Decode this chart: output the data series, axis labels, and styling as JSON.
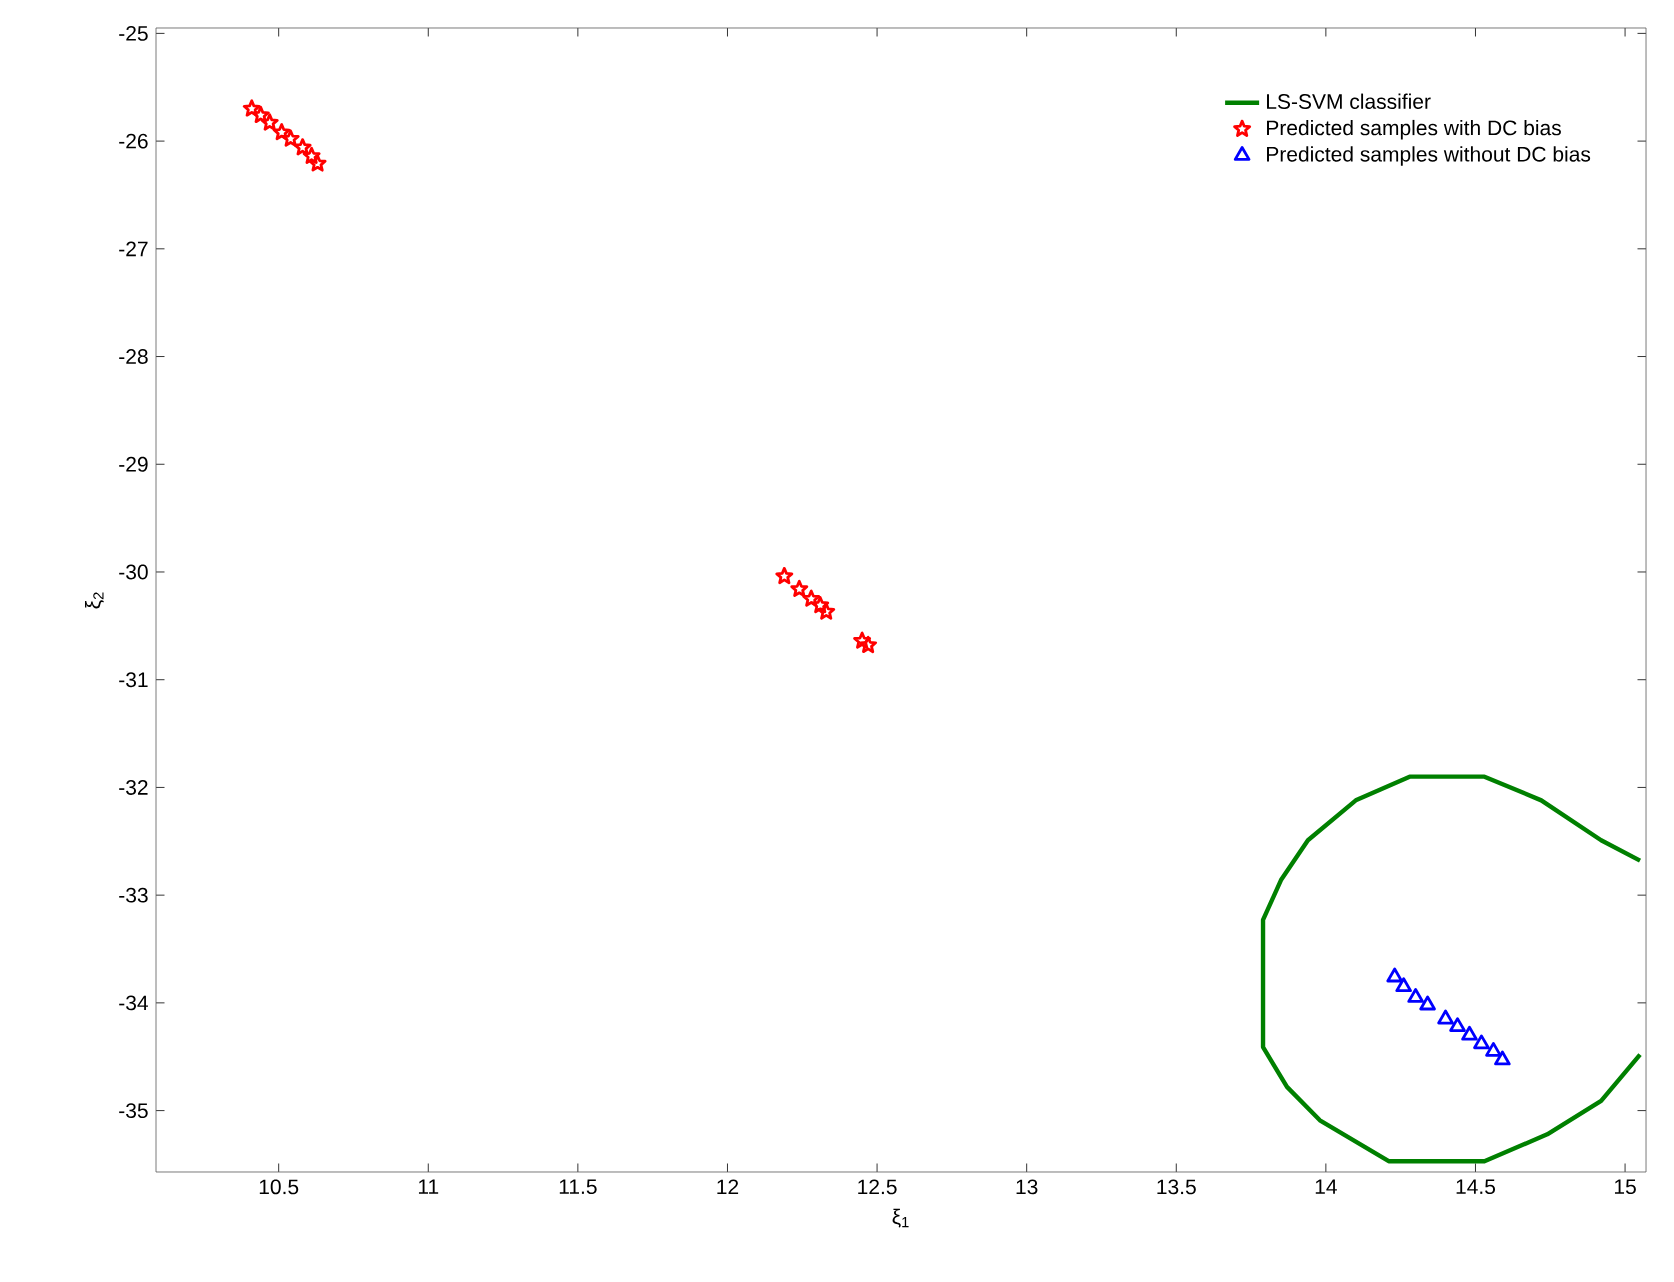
{
  "chart_data": {
    "type": "scatter",
    "xlabel": "ξ$_{1}$",
    "ylabel": "ξ$_{2}$",
    "xlim": [
      10.09,
      15.07
    ],
    "ylim": [
      -35.57,
      -24.95
    ],
    "xticks": [
      10.5,
      11,
      11.5,
      12,
      12.5,
      13,
      13.5,
      14,
      14.5,
      15
    ],
    "yticks": [
      -35,
      -34,
      -33,
      -32,
      -31,
      -30,
      -29,
      -28,
      -27,
      -26,
      -25
    ],
    "legend": "top right",
    "grid": false,
    "series": [
      {
        "name": "LS-SVM classifier",
        "type": "line",
        "color": "#008000",
        "marker": "none",
        "line_style": "solid",
        "x": [
          15.05,
          14.92,
          14.72,
          14.53,
          14.28,
          14.1,
          13.94,
          13.85,
          13.79,
          13.79,
          13.87,
          13.98,
          14.21,
          14.53,
          14.74,
          14.92,
          15.05
        ],
        "values": [
          -32.68,
          -32.49,
          -32.12,
          -31.9,
          -31.9,
          -32.12,
          -32.49,
          -32.86,
          -33.23,
          -34.41,
          -34.78,
          -35.09,
          -35.47,
          -35.47,
          -35.22,
          -34.91,
          -34.48
        ]
      },
      {
        "name": "Predicted samples with DC bias",
        "color": "#ff0000",
        "marker": "star",
        "x": [
          10.41,
          10.44,
          10.47,
          10.51,
          10.54,
          10.58,
          10.61,
          10.63,
          12.19,
          12.24,
          12.28,
          12.31,
          12.33,
          12.45,
          12.47
        ],
        "values": [
          -25.7,
          -25.76,
          -25.83,
          -25.92,
          -25.98,
          -26.06,
          -26.14,
          -26.21,
          -30.04,
          -30.16,
          -30.25,
          -30.31,
          -30.37,
          -30.64,
          -30.68
        ]
      },
      {
        "name": "Predicted samples without DC bias",
        "color": "#0000ff",
        "marker": "triangle",
        "x": [
          14.23,
          14.26,
          14.3,
          14.34,
          14.4,
          14.44,
          14.48,
          14.52,
          14.56,
          14.59
        ],
        "values": [
          -33.76,
          -33.85,
          -33.95,
          -34.02,
          -34.15,
          -34.22,
          -34.3,
          -34.38,
          -34.45,
          -34.53
        ]
      }
    ]
  }
}
